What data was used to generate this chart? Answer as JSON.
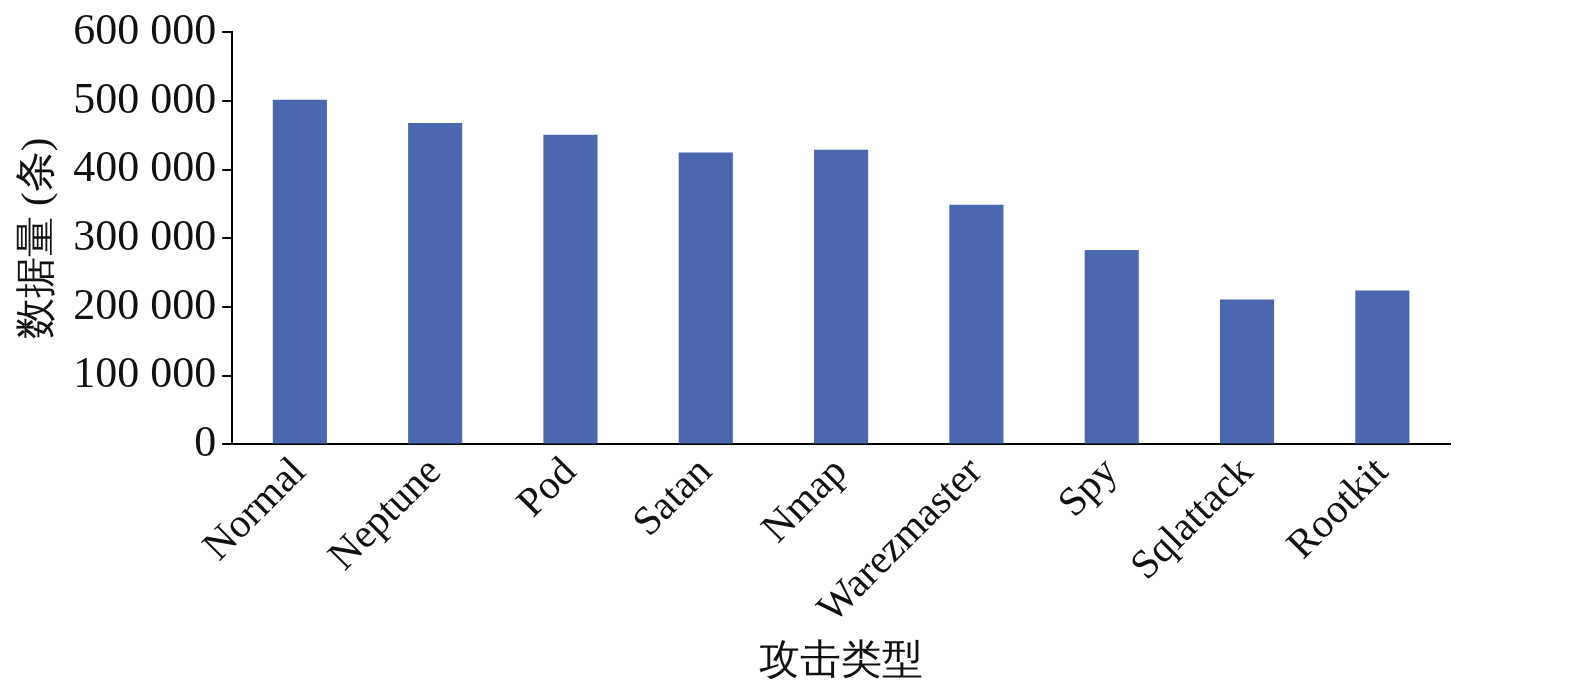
{
  "chart_data": {
    "type": "bar",
    "xlabel": "攻击类型",
    "ylabel": "数据量 (条)",
    "categories": [
      "Normal",
      "Neptune",
      "Pod",
      "Satan",
      "Nmap",
      "Warezmaster",
      "Spy",
      "Sqlattack",
      "Rootkit"
    ],
    "values": [
      502000,
      468000,
      451000,
      425000,
      429000,
      349000,
      283000,
      211000,
      224000
    ],
    "color": "#4a67b0",
    "ylim": [
      0,
      600000
    ],
    "yticks": [
      0,
      {
        "value": 100000,
        "label": "100 000"
      },
      {
        "value": 200000,
        "label": "200 000"
      },
      {
        "value": 300000,
        "label": "300 000"
      },
      {
        "value": 400000,
        "label": "400 000"
      },
      {
        "value": 500000,
        "label": "500 000"
      },
      {
        "value": 600000,
        "label": "600 000"
      }
    ],
    "grid": false,
    "legend": false
  }
}
